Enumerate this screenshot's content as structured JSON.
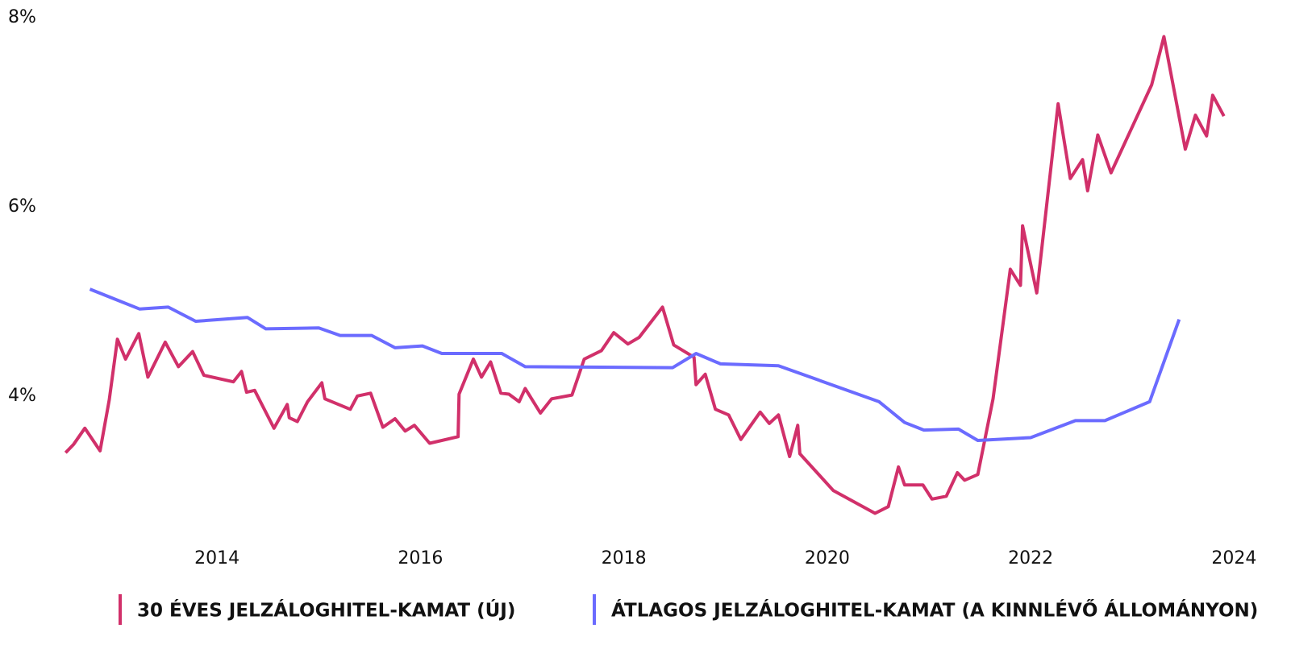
{
  "chart_data": {
    "type": "line",
    "xlim": [
      2012.5,
      2024.1
    ],
    "xticks": [
      2014,
      2016,
      2018,
      2020,
      2022,
      2024
    ],
    "ylim": [
      2.5,
      8
    ],
    "yticks": [
      {
        "value": 4,
        "label": "4%"
      },
      {
        "value": 6,
        "label": "6%"
      },
      {
        "value": 8,
        "label": "8%"
      }
    ],
    "legend": "bottom",
    "series": [
      {
        "name": "30 ÉVES JELZÁLOGHITEL-KAMAT (ÚJ)",
        "color": "#d1306a",
        "x": [
          2012.51,
          2012.59,
          2012.7,
          2012.85,
          2012.94,
          2013.02,
          2013.1,
          2013.23,
          2013.32,
          2013.49,
          2013.62,
          2013.76,
          2013.87,
          2014.16,
          2014.24,
          2014.29,
          2014.37,
          2014.56,
          2014.69,
          2014.71,
          2014.79,
          2014.89,
          2015.03,
          2015.06,
          2015.31,
          2015.38,
          2015.51,
          2015.63,
          2015.75,
          2015.85,
          2015.94,
          2016.09,
          2016.37,
          2016.38,
          2016.52,
          2016.6,
          2016.69,
          2016.79,
          2016.87,
          2016.97,
          2017.03,
          2017.18,
          2017.29,
          2017.49,
          2017.61,
          2017.78,
          2017.9,
          2018.04,
          2018.15,
          2018.38,
          2018.49,
          2018.69,
          2018.71,
          2018.8,
          2018.9,
          2019.03,
          2019.15,
          2019.34,
          2019.43,
          2019.52,
          2019.63,
          2019.71,
          2019.73,
          2020.06,
          2020.47,
          2020.6,
          2020.7,
          2020.76,
          2020.94,
          2021.03,
          2021.17,
          2021.28,
          2021.35,
          2021.48,
          2021.63,
          2021.8,
          2021.9,
          2021.92,
          2022.06,
          2022.27,
          2022.39,
          2022.51,
          2022.56,
          2022.66,
          2022.79,
          2023.19,
          2023.31,
          2023.52,
          2023.62,
          2023.73,
          2023.79,
          2023.9
        ],
        "values": [
          3.4,
          3.49,
          3.66,
          3.42,
          3.96,
          4.6,
          4.39,
          4.66,
          4.2,
          4.57,
          4.31,
          4.47,
          4.22,
          4.15,
          4.26,
          4.04,
          4.06,
          3.66,
          3.91,
          3.77,
          3.73,
          3.94,
          4.14,
          3.97,
          3.86,
          4.0,
          4.03,
          3.67,
          3.76,
          3.63,
          3.69,
          3.5,
          3.57,
          4.02,
          4.39,
          4.2,
          4.36,
          4.03,
          4.02,
          3.94,
          4.08,
          3.82,
          3.97,
          4.01,
          4.39,
          4.48,
          4.67,
          4.55,
          4.62,
          4.94,
          4.54,
          4.41,
          4.12,
          4.23,
          3.86,
          3.8,
          3.54,
          3.83,
          3.71,
          3.8,
          3.36,
          3.69,
          3.39,
          3.0,
          2.76,
          2.83,
          3.25,
          3.06,
          3.06,
          2.91,
          2.94,
          3.19,
          3.11,
          3.17,
          3.97,
          5.34,
          5.17,
          5.8,
          5.09,
          7.09,
          6.3,
          6.5,
          6.17,
          6.76,
          6.36,
          7.29,
          7.8,
          6.61,
          6.97,
          6.75,
          7.18,
          6.96
        ]
      },
      {
        "name": "ÁTLAGOS JELZÁLOGHITEL-KAMAT (A KINNLÉVŐ ÁLLOMÁNYON)",
        "color": "#6b6bff",
        "x": [
          2012.75,
          2013.24,
          2013.52,
          2013.79,
          2014.3,
          2014.48,
          2015.0,
          2015.21,
          2015.52,
          2015.75,
          2016.02,
          2016.21,
          2016.8,
          2017.03,
          2018.48,
          2018.71,
          2018.95,
          2019.52,
          2020.51,
          2020.76,
          2020.95,
          2021.29,
          2021.48,
          2022.0,
          2022.44,
          2022.73,
          2023.17,
          2023.46
        ],
        "values": [
          5.13,
          4.92,
          4.94,
          4.79,
          4.83,
          4.71,
          4.72,
          4.64,
          4.64,
          4.51,
          4.53,
          4.45,
          4.45,
          4.31,
          4.3,
          4.45,
          4.34,
          4.32,
          3.94,
          3.72,
          3.64,
          3.65,
          3.53,
          3.56,
          3.74,
          3.74,
          3.94,
          4.81
        ]
      }
    ]
  }
}
